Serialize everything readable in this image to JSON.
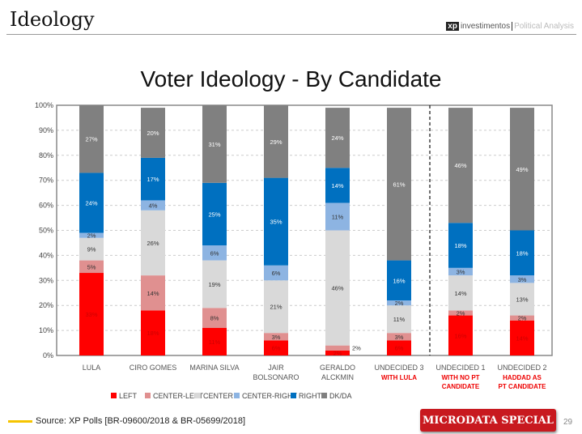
{
  "header": {
    "title": "Ideology",
    "logo_xp": "xp",
    "logo_brand": "investimentos",
    "logo_section": "Political Analysis"
  },
  "footer": {
    "source": "Source: XP Polls [BR-09600/2018 & BR-05699/2018]",
    "badge": "MICRODATA SPECIAL",
    "page": "29"
  },
  "chart_data": {
    "type": "bar",
    "stacked": true,
    "title": "Voter Ideology - By Candidate",
    "ylim": [
      0,
      100
    ],
    "yticks": [
      "0%",
      "10%",
      "20%",
      "30%",
      "40%",
      "50%",
      "60%",
      "70%",
      "80%",
      "90%",
      "100%"
    ],
    "categories": [
      {
        "label": [
          "LULA"
        ],
        "sub": []
      },
      {
        "label": [
          "CIRO GOMES"
        ],
        "sub": []
      },
      {
        "label": [
          "MARINA SILVA"
        ],
        "sub": []
      },
      {
        "label": [
          "JAIR",
          "BOLSONARO"
        ],
        "sub": []
      },
      {
        "label": [
          "GERALDO",
          "ALCKMIN"
        ],
        "sub": []
      },
      {
        "label": [
          "UNDECIDED 3"
        ],
        "sub": [
          "WITH LULA"
        ]
      },
      {
        "label": [
          "UNDECIDED 1"
        ],
        "sub": [
          "WITH NO PT",
          "CANDIDATE"
        ]
      },
      {
        "label": [
          "UNDECIDED 2"
        ],
        "sub": [
          "HADDAD AS",
          "PT CANDIDATE"
        ]
      }
    ],
    "series": [
      {
        "name": "LEFT",
        "color": "#ff0000",
        "values": [
          33,
          18,
          11,
          6,
          2,
          6,
          16,
          14
        ]
      },
      {
        "name": "CENTER-LEFT",
        "color": "#e09090",
        "values": [
          5,
          14,
          8,
          3,
          2,
          3,
          2,
          2
        ]
      },
      {
        "name": "CENTER",
        "color": "#d9d9d9",
        "values": [
          9,
          26,
          19,
          21,
          46,
          11,
          14,
          13
        ]
      },
      {
        "name": "CENTER-RIGHT",
        "color": "#8db4e2",
        "values": [
          2,
          4,
          6,
          6,
          11,
          2,
          3,
          3
        ]
      },
      {
        "name": "RIGHT",
        "color": "#0070c0",
        "values": [
          24,
          17,
          25,
          35,
          14,
          16,
          18,
          18
        ]
      },
      {
        "name": "DK/DA",
        "color": "#808080",
        "values": [
          27,
          20,
          31,
          29,
          24,
          61,
          46,
          49
        ]
      }
    ],
    "divider_after_index": 5,
    "legend": "bottom"
  }
}
